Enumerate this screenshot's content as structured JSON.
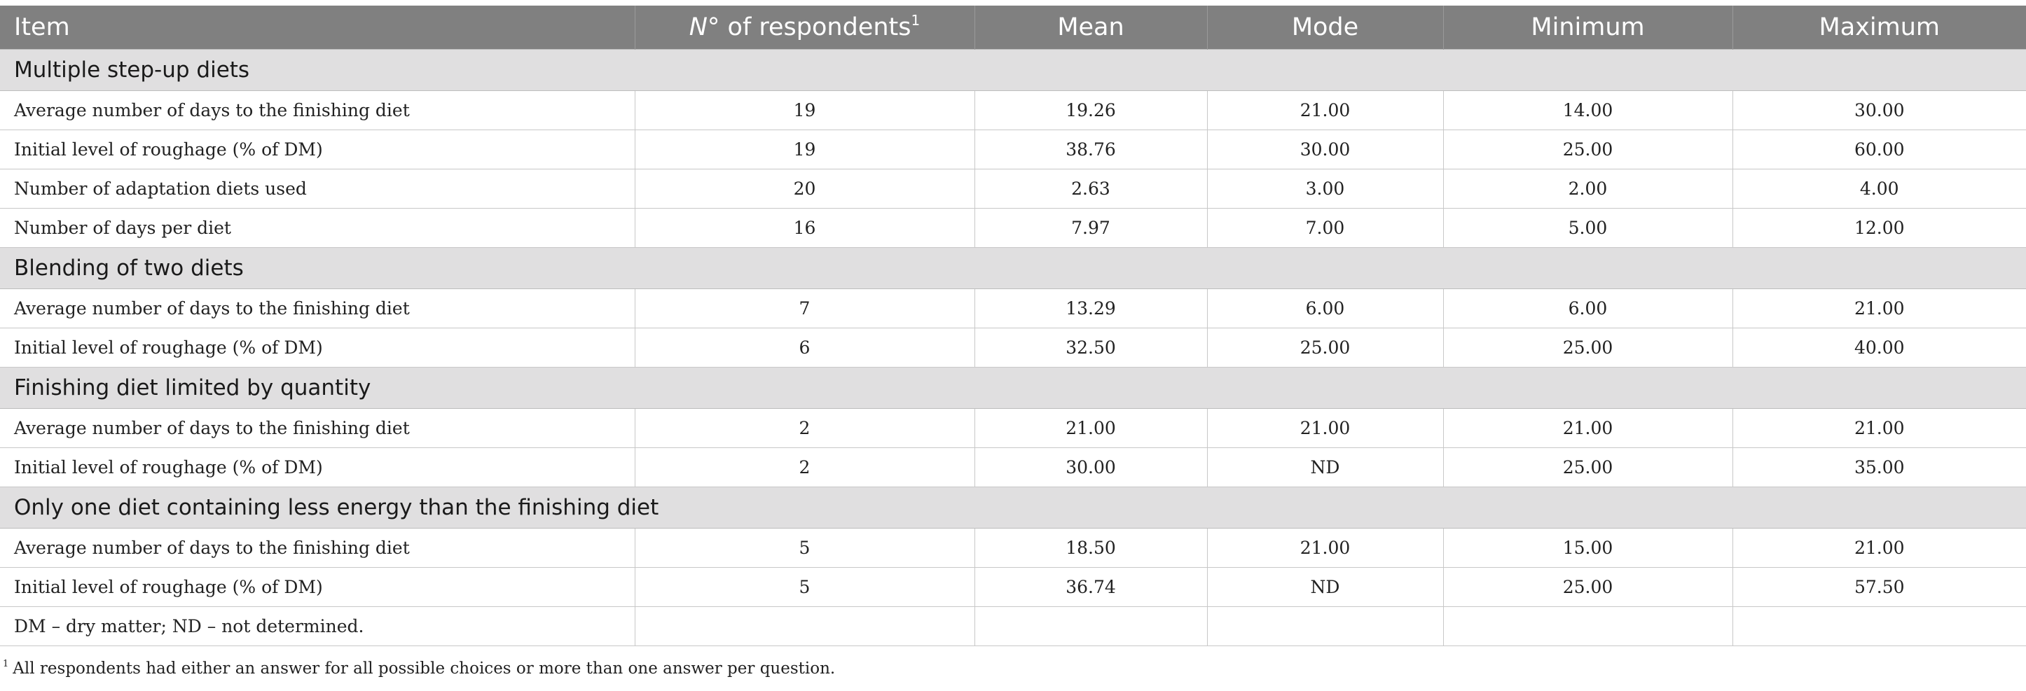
{
  "header": {
    "item": "Item",
    "respondents_italic": "N",
    "respondents_rest": "° of respondents",
    "respondents_sup": "1",
    "mean": "Mean",
    "mode": "Mode",
    "minimum": "Minimum",
    "maximum": "Maximum"
  },
  "sections": [
    {
      "title": "Multiple step-up diets",
      "rows": [
        [
          "Average number of days to the finishing diet",
          "19",
          "19.26",
          "21.00",
          "14.00",
          "30.00"
        ],
        [
          "Initial level of roughage (% of DM)",
          "19",
          "38.76",
          "30.00",
          "25.00",
          "60.00"
        ],
        [
          "Number of adaptation diets used",
          "20",
          "2.63",
          "3.00",
          "2.00",
          "4.00"
        ],
        [
          "Number of days per diet",
          "16",
          "7.97",
          "7.00",
          "5.00",
          "12.00"
        ]
      ]
    },
    {
      "title": "Blending of two diets",
      "rows": [
        [
          "Average number of days to the finishing diet",
          "7",
          "13.29",
          "6.00",
          "6.00",
          "21.00"
        ],
        [
          "Initial level of roughage (% of DM)",
          "6",
          "32.50",
          "25.00",
          "25.00",
          "40.00"
        ]
      ]
    },
    {
      "title": "Finishing diet limited by quantity",
      "rows": [
        [
          "Average number of days to the finishing diet",
          "2",
          "21.00",
          "21.00",
          "21.00",
          "21.00"
        ],
        [
          "Initial level of roughage (% of DM)",
          "2",
          "30.00",
          "ND",
          "25.00",
          "35.00"
        ]
      ]
    },
    {
      "title": "Only one diet containing less energy than the finishing diet",
      "rows": [
        [
          "Average number of days to the finishing diet",
          "5",
          "18.50",
          "21.00",
          "15.00",
          "21.00"
        ],
        [
          "Initial level of roughage (% of DM)",
          "5",
          "36.74",
          "ND",
          "25.00",
          "57.50"
        ]
      ]
    }
  ],
  "abbreviations_row": "DM – dry matter; ND – not determined.",
  "footnote": {
    "marker": "1",
    "text": "All respondents had either an answer for all possible choices or more than one answer per question."
  }
}
